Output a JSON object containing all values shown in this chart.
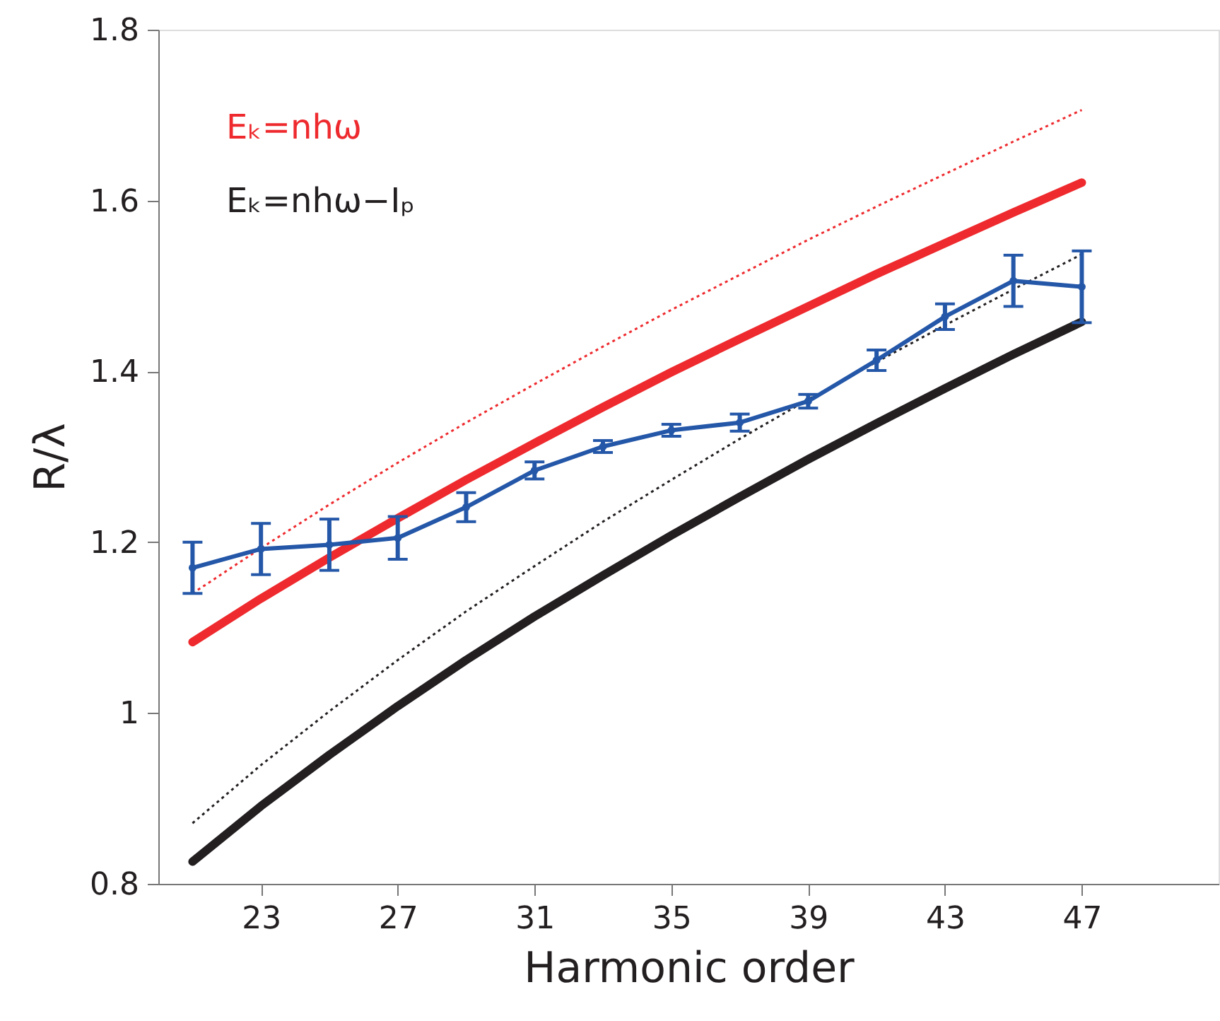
{
  "chart_data": {
    "type": "line",
    "xlabel": "Harmonic order",
    "ylabel": "R/λ",
    "xlim": [
      20,
      51
    ],
    "xticks": [
      23,
      27,
      31,
      35,
      39,
      43,
      47
    ],
    "ylim": [
      0.8,
      1.8
    ],
    "yticks": [
      0.8,
      1,
      1.2,
      1.4,
      1.6,
      1.8
    ],
    "grid": false,
    "legend": "top left",
    "series": [
      {
        "name": "Eₖ=nhω",
        "color": "#ee2a2e",
        "line_style": "solid",
        "marker": "none",
        "x": [
          21,
          23,
          25,
          27,
          29,
          31,
          33,
          35,
          37,
          39,
          41,
          43,
          45,
          47
        ],
        "values": [
          1.083,
          1.134,
          1.182,
          1.228,
          1.273,
          1.316,
          1.358,
          1.399,
          1.438,
          1.476,
          1.514,
          1.55,
          1.586,
          1.621
        ]
      },
      {
        "color": "#ee2a2e",
        "line_style": "dotted",
        "marker": "none",
        "x": [
          21,
          23,
          25,
          27,
          29,
          31,
          33,
          35,
          37,
          39,
          41,
          43,
          45,
          47
        ],
        "values": [
          1.14,
          1.193,
          1.244,
          1.293,
          1.34,
          1.385,
          1.429,
          1.472,
          1.513,
          1.554,
          1.593,
          1.631,
          1.669,
          1.706
        ]
      },
      {
        "name": "Eₖ=nhω−Iₚ",
        "color": "#231f20",
        "line_style": "solid",
        "marker": "none",
        "x": [
          21,
          23,
          25,
          27,
          29,
          31,
          33,
          35,
          37,
          39,
          41,
          43,
          45,
          47
        ],
        "values": [
          0.826,
          0.891,
          0.951,
          1.008,
          1.062,
          1.113,
          1.161,
          1.208,
          1.253,
          1.297,
          1.339,
          1.38,
          1.42,
          1.458
        ]
      },
      {
        "color": "#231f20",
        "line_style": "dotted",
        "marker": "none",
        "x": [
          21,
          23,
          25,
          27,
          29,
          31,
          33,
          35,
          37,
          39,
          41,
          43,
          45,
          47
        ],
        "values": [
          0.871,
          0.939,
          1.002,
          1.062,
          1.119,
          1.172,
          1.224,
          1.273,
          1.321,
          1.367,
          1.411,
          1.454,
          1.496,
          1.537
        ]
      },
      {
        "color": "#2457a8",
        "line_style": "solid",
        "marker": "circle",
        "x": [
          21,
          23,
          25,
          27,
          29,
          31,
          33,
          35,
          37,
          39,
          41,
          43,
          45,
          47
        ],
        "values": [
          1.17,
          1.192,
          1.197,
          1.205,
          1.241,
          1.284,
          1.312,
          1.331,
          1.34,
          1.365,
          1.413,
          1.464,
          1.506,
          1.499
        ],
        "errors": [
          0.03,
          0.03,
          0.03,
          0.025,
          0.017,
          0.01,
          0.007,
          0.007,
          0.01,
          0.008,
          0.012,
          0.015,
          0.03,
          0.042
        ]
      }
    ]
  }
}
